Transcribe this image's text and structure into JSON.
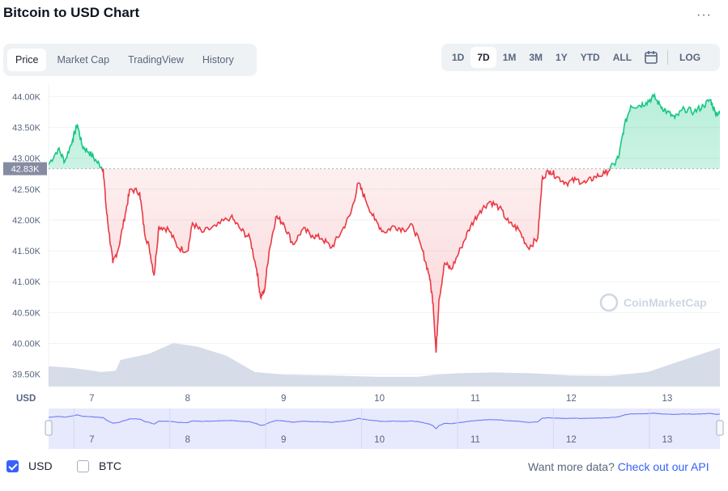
{
  "header": {
    "title": "Bitcoin to USD Chart",
    "more_label": "···"
  },
  "tabs": [
    {
      "label": "Price",
      "active": true
    },
    {
      "label": "Market Cap",
      "active": false
    },
    {
      "label": "TradingView",
      "active": false
    },
    {
      "label": "History",
      "active": false
    }
  ],
  "ranges": [
    {
      "label": "1D",
      "active": false
    },
    {
      "label": "7D",
      "active": true
    },
    {
      "label": "1M",
      "active": false
    },
    {
      "label": "3M",
      "active": false
    },
    {
      "label": "1Y",
      "active": false
    },
    {
      "label": "YTD",
      "active": false
    },
    {
      "label": "ALL",
      "active": false
    }
  ],
  "log_label": "LOG",
  "calendar_icon": "calendar-icon",
  "colors": {
    "up": "#16c784",
    "down": "#ea3943",
    "volume": "#cfd6e4",
    "accent": "#3861fb",
    "navigator_fill": "#e7e9fd"
  },
  "chart_data": {
    "type": "line",
    "currency_label": "USD",
    "reference_price": 42830,
    "reference_label": "42.83K",
    "ylim": [
      39300,
      44200
    ],
    "y_ticks": [
      {
        "v": 44000,
        "label": "44.00K"
      },
      {
        "v": 43500,
        "label": "43.50K"
      },
      {
        "v": 43000,
        "label": "43.00K"
      },
      {
        "v": 42500,
        "label": "42.50K"
      },
      {
        "v": 42000,
        "label": "42.00K"
      },
      {
        "v": 41500,
        "label": "41.50K"
      },
      {
        "v": 41000,
        "label": "41.00K"
      },
      {
        "v": 40500,
        "label": "40.50K"
      },
      {
        "v": 40000,
        "label": "40.00K"
      },
      {
        "v": 39500,
        "label": "39.50K"
      }
    ],
    "xlim": [
      6.55,
      13.55
    ],
    "x_ticks": [
      {
        "v": 7,
        "label": "7"
      },
      {
        "v": 8,
        "label": "8"
      },
      {
        "v": 9,
        "label": "9"
      },
      {
        "v": 10,
        "label": "10"
      },
      {
        "v": 11,
        "label": "11"
      },
      {
        "v": 12,
        "label": "12"
      },
      {
        "v": 13,
        "label": "13"
      }
    ],
    "price": [
      [
        6.55,
        42900
      ],
      [
        6.65,
        43150
      ],
      [
        6.72,
        42950
      ],
      [
        6.8,
        43300
      ],
      [
        6.85,
        43550
      ],
      [
        6.9,
        43200
      ],
      [
        6.97,
        43100
      ],
      [
        7.05,
        42950
      ],
      [
        7.12,
        42830
      ],
      [
        7.15,
        42200
      ],
      [
        7.18,
        41800
      ],
      [
        7.22,
        41300
      ],
      [
        7.28,
        41550
      ],
      [
        7.35,
        42100
      ],
      [
        7.4,
        42500
      ],
      [
        7.5,
        42450
      ],
      [
        7.55,
        41800
      ],
      [
        7.6,
        41550
      ],
      [
        7.65,
        41100
      ],
      [
        7.7,
        41900
      ],
      [
        7.8,
        41850
      ],
      [
        7.9,
        41550
      ],
      [
        8.0,
        41500
      ],
      [
        8.05,
        41950
      ],
      [
        8.15,
        41800
      ],
      [
        8.3,
        41900
      ],
      [
        8.45,
        42050
      ],
      [
        8.55,
        41850
      ],
      [
        8.65,
        41700
      ],
      [
        8.72,
        41200
      ],
      [
        8.76,
        40750
      ],
      [
        8.8,
        40850
      ],
      [
        8.85,
        41500
      ],
      [
        8.92,
        42050
      ],
      [
        9.0,
        41950
      ],
      [
        9.1,
        41600
      ],
      [
        9.2,
        41850
      ],
      [
        9.3,
        41750
      ],
      [
        9.4,
        41700
      ],
      [
        9.5,
        41550
      ],
      [
        9.6,
        41800
      ],
      [
        9.7,
        42100
      ],
      [
        9.78,
        42600
      ],
      [
        9.85,
        42350
      ],
      [
        9.95,
        42000
      ],
      [
        10.05,
        41800
      ],
      [
        10.15,
        41900
      ],
      [
        10.25,
        41850
      ],
      [
        10.35,
        41900
      ],
      [
        10.45,
        41500
      ],
      [
        10.52,
        41100
      ],
      [
        10.56,
        40650
      ],
      [
        10.59,
        39850
      ],
      [
        10.62,
        40700
      ],
      [
        10.68,
        41300
      ],
      [
        10.75,
        41200
      ],
      [
        10.85,
        41550
      ],
      [
        10.95,
        41900
      ],
      [
        11.05,
        42150
      ],
      [
        11.15,
        42300
      ],
      [
        11.25,
        42200
      ],
      [
        11.35,
        41950
      ],
      [
        11.45,
        41850
      ],
      [
        11.55,
        41550
      ],
      [
        11.65,
        41700
      ],
      [
        11.7,
        42700
      ],
      [
        11.78,
        42800
      ],
      [
        11.85,
        42700
      ],
      [
        11.95,
        42600
      ],
      [
        12.05,
        42650
      ],
      [
        12.15,
        42600
      ],
      [
        12.25,
        42700
      ],
      [
        12.35,
        42750
      ],
      [
        12.45,
        42900
      ],
      [
        12.5,
        43050
      ],
      [
        12.55,
        43500
      ],
      [
        12.62,
        43850
      ],
      [
        12.7,
        43850
      ],
      [
        12.78,
        43900
      ],
      [
        12.86,
        44000
      ],
      [
        12.93,
        43850
      ],
      [
        13.0,
        43750
      ],
      [
        13.08,
        43650
      ],
      [
        13.18,
        43800
      ],
      [
        13.28,
        43750
      ],
      [
        13.38,
        43850
      ],
      [
        13.45,
        43950
      ],
      [
        13.5,
        43750
      ],
      [
        13.55,
        43720
      ]
    ],
    "volume": [
      [
        6.55,
        0.46
      ],
      [
        6.8,
        0.42
      ],
      [
        7.1,
        0.33
      ],
      [
        7.25,
        0.36
      ],
      [
        7.3,
        0.6
      ],
      [
        7.6,
        0.74
      ],
      [
        7.85,
        0.98
      ],
      [
        8.1,
        0.9
      ],
      [
        8.4,
        0.7
      ],
      [
        8.7,
        0.33
      ],
      [
        9.0,
        0.27
      ],
      [
        9.5,
        0.25
      ],
      [
        10.0,
        0.22
      ],
      [
        10.4,
        0.22
      ],
      [
        10.6,
        0.27
      ],
      [
        10.8,
        0.3
      ],
      [
        11.2,
        0.32
      ],
      [
        11.6,
        0.3
      ],
      [
        12.0,
        0.25
      ],
      [
        12.4,
        0.24
      ],
      [
        12.8,
        0.33
      ],
      [
        13.1,
        0.55
      ],
      [
        13.55,
        0.87
      ]
    ],
    "watermark": "CoinMarketCap"
  },
  "navigator": {
    "labels": [
      "7",
      "8",
      "9",
      "10",
      "11",
      "12",
      "13"
    ]
  },
  "footer": {
    "usd_label": "USD",
    "btc_label": "BTC",
    "prompt": "Want more data?",
    "api_link": "Check out our API"
  }
}
